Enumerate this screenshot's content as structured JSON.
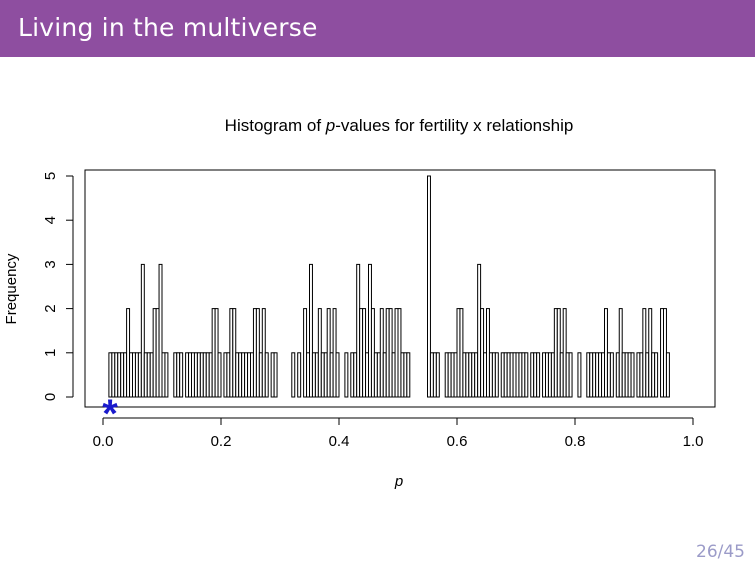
{
  "slide": {
    "title": "Living in the multiverse",
    "page": "26/45"
  },
  "chart_data": {
    "type": "bar",
    "title_prefix": "Histogram of ",
    "title_italic": "p",
    "title_suffix": "-values for fertility x relationship",
    "xlabel": "p",
    "ylabel": "Frequency",
    "xlim": [
      0,
      1
    ],
    "ylim": [
      0,
      5
    ],
    "xticks": [
      "0.0",
      "0.2",
      "0.4",
      "0.6",
      "0.8",
      "1.0"
    ],
    "yticks": [
      "0",
      "1",
      "2",
      "3",
      "4",
      "5"
    ],
    "bin_width": 0.005,
    "bins": [
      [
        0.01,
        1
      ],
      [
        0.015,
        1
      ],
      [
        0.02,
        1
      ],
      [
        0.025,
        1
      ],
      [
        0.03,
        1
      ],
      [
        0.035,
        1
      ],
      [
        0.04,
        2
      ],
      [
        0.045,
        1
      ],
      [
        0.05,
        1
      ],
      [
        0.055,
        1
      ],
      [
        0.06,
        1
      ],
      [
        0.065,
        3
      ],
      [
        0.07,
        1
      ],
      [
        0.075,
        1
      ],
      [
        0.08,
        1
      ],
      [
        0.085,
        2
      ],
      [
        0.09,
        2
      ],
      [
        0.095,
        3
      ],
      [
        0.1,
        1
      ],
      [
        0.105,
        1
      ],
      [
        0.12,
        1
      ],
      [
        0.125,
        1
      ],
      [
        0.13,
        1
      ],
      [
        0.14,
        1
      ],
      [
        0.145,
        1
      ],
      [
        0.15,
        1
      ],
      [
        0.155,
        1
      ],
      [
        0.16,
        1
      ],
      [
        0.165,
        1
      ],
      [
        0.17,
        1
      ],
      [
        0.175,
        1
      ],
      [
        0.18,
        1
      ],
      [
        0.185,
        2
      ],
      [
        0.19,
        2
      ],
      [
        0.195,
        1
      ],
      [
        0.205,
        1
      ],
      [
        0.21,
        1
      ],
      [
        0.215,
        2
      ],
      [
        0.22,
        2
      ],
      [
        0.225,
        1
      ],
      [
        0.23,
        1
      ],
      [
        0.235,
        1
      ],
      [
        0.24,
        1
      ],
      [
        0.245,
        1
      ],
      [
        0.25,
        1
      ],
      [
        0.255,
        2
      ],
      [
        0.26,
        2
      ],
      [
        0.265,
        1
      ],
      [
        0.27,
        2
      ],
      [
        0.275,
        1
      ],
      [
        0.285,
        1
      ],
      [
        0.29,
        1
      ],
      [
        0.32,
        1
      ],
      [
        0.33,
        1
      ],
      [
        0.34,
        2
      ],
      [
        0.345,
        1
      ],
      [
        0.35,
        3
      ],
      [
        0.355,
        1
      ],
      [
        0.36,
        1
      ],
      [
        0.365,
        2
      ],
      [
        0.37,
        1
      ],
      [
        0.375,
        1
      ],
      [
        0.38,
        2
      ],
      [
        0.385,
        1
      ],
      [
        0.39,
        2
      ],
      [
        0.395,
        1
      ],
      [
        0.41,
        1
      ],
      [
        0.42,
        1
      ],
      [
        0.425,
        1
      ],
      [
        0.43,
        3
      ],
      [
        0.435,
        2
      ],
      [
        0.44,
        2
      ],
      [
        0.445,
        1
      ],
      [
        0.45,
        3
      ],
      [
        0.455,
        2
      ],
      [
        0.46,
        1
      ],
      [
        0.465,
        1
      ],
      [
        0.47,
        2
      ],
      [
        0.475,
        1
      ],
      [
        0.48,
        2
      ],
      [
        0.485,
        2
      ],
      [
        0.49,
        1
      ],
      [
        0.495,
        2
      ],
      [
        0.5,
        2
      ],
      [
        0.505,
        1
      ],
      [
        0.51,
        1
      ],
      [
        0.515,
        1
      ],
      [
        0.55,
        5
      ],
      [
        0.555,
        1
      ],
      [
        0.56,
        1
      ],
      [
        0.565,
        1
      ],
      [
        0.58,
        1
      ],
      [
        0.585,
        1
      ],
      [
        0.59,
        1
      ],
      [
        0.595,
        1
      ],
      [
        0.6,
        2
      ],
      [
        0.605,
        2
      ],
      [
        0.61,
        1
      ],
      [
        0.615,
        1
      ],
      [
        0.62,
        1
      ],
      [
        0.625,
        1
      ],
      [
        0.63,
        1
      ],
      [
        0.635,
        3
      ],
      [
        0.64,
        2
      ],
      [
        0.645,
        1
      ],
      [
        0.65,
        2
      ],
      [
        0.655,
        1
      ],
      [
        0.66,
        1
      ],
      [
        0.665,
        1
      ],
      [
        0.675,
        1
      ],
      [
        0.68,
        1
      ],
      [
        0.685,
        1
      ],
      [
        0.69,
        1
      ],
      [
        0.695,
        1
      ],
      [
        0.7,
        1
      ],
      [
        0.705,
        1
      ],
      [
        0.71,
        1
      ],
      [
        0.715,
        1
      ],
      [
        0.725,
        1
      ],
      [
        0.73,
        1
      ],
      [
        0.735,
        1
      ],
      [
        0.745,
        1
      ],
      [
        0.75,
        1
      ],
      [
        0.755,
        1
      ],
      [
        0.76,
        1
      ],
      [
        0.765,
        2
      ],
      [
        0.77,
        2
      ],
      [
        0.775,
        1
      ],
      [
        0.78,
        2
      ],
      [
        0.785,
        1
      ],
      [
        0.79,
        1
      ],
      [
        0.805,
        1
      ],
      [
        0.82,
        1
      ],
      [
        0.825,
        1
      ],
      [
        0.83,
        1
      ],
      [
        0.835,
        1
      ],
      [
        0.84,
        1
      ],
      [
        0.845,
        1
      ],
      [
        0.85,
        2
      ],
      [
        0.855,
        1
      ],
      [
        0.86,
        1
      ],
      [
        0.87,
        1
      ],
      [
        0.875,
        2
      ],
      [
        0.88,
        1
      ],
      [
        0.885,
        1
      ],
      [
        0.89,
        1
      ],
      [
        0.895,
        1
      ],
      [
        0.905,
        1
      ],
      [
        0.91,
        1
      ],
      [
        0.915,
        2
      ],
      [
        0.92,
        1
      ],
      [
        0.925,
        2
      ],
      [
        0.93,
        1
      ],
      [
        0.935,
        1
      ],
      [
        0.945,
        2
      ],
      [
        0.95,
        2
      ],
      [
        0.955,
        1
      ]
    ],
    "marker": {
      "x": 0.012,
      "y": 0,
      "symbol": "*",
      "color": "#1a1acc"
    }
  }
}
